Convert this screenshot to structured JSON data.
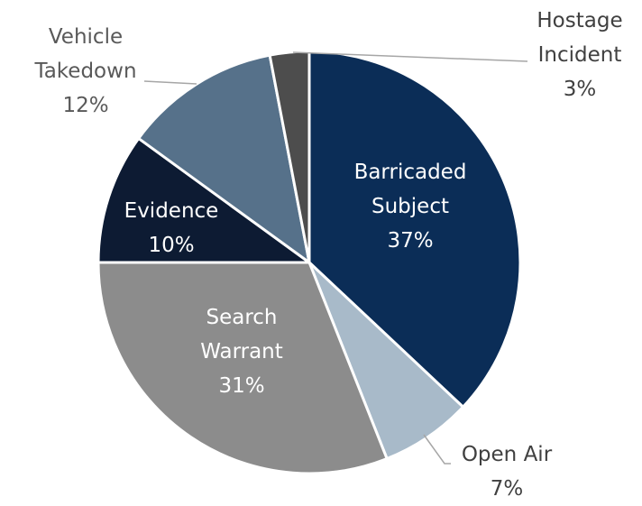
{
  "chart_data": {
    "type": "pie",
    "categories": [
      "Barricaded Subject",
      "Open Air",
      "Search Warrant",
      "Evidence",
      "Vehicle Takedown",
      "Hostage Incident"
    ],
    "values": [
      37,
      7,
      31,
      10,
      12,
      3
    ],
    "value_labels": [
      "37%",
      "7%",
      "31%",
      "10%",
      "12%",
      "3%"
    ],
    "colors": [
      "#0b2d57",
      "#a8bac9",
      "#8c8c8c",
      "#0d1b33",
      "#56718a",
      "#4d4d4d"
    ]
  }
}
